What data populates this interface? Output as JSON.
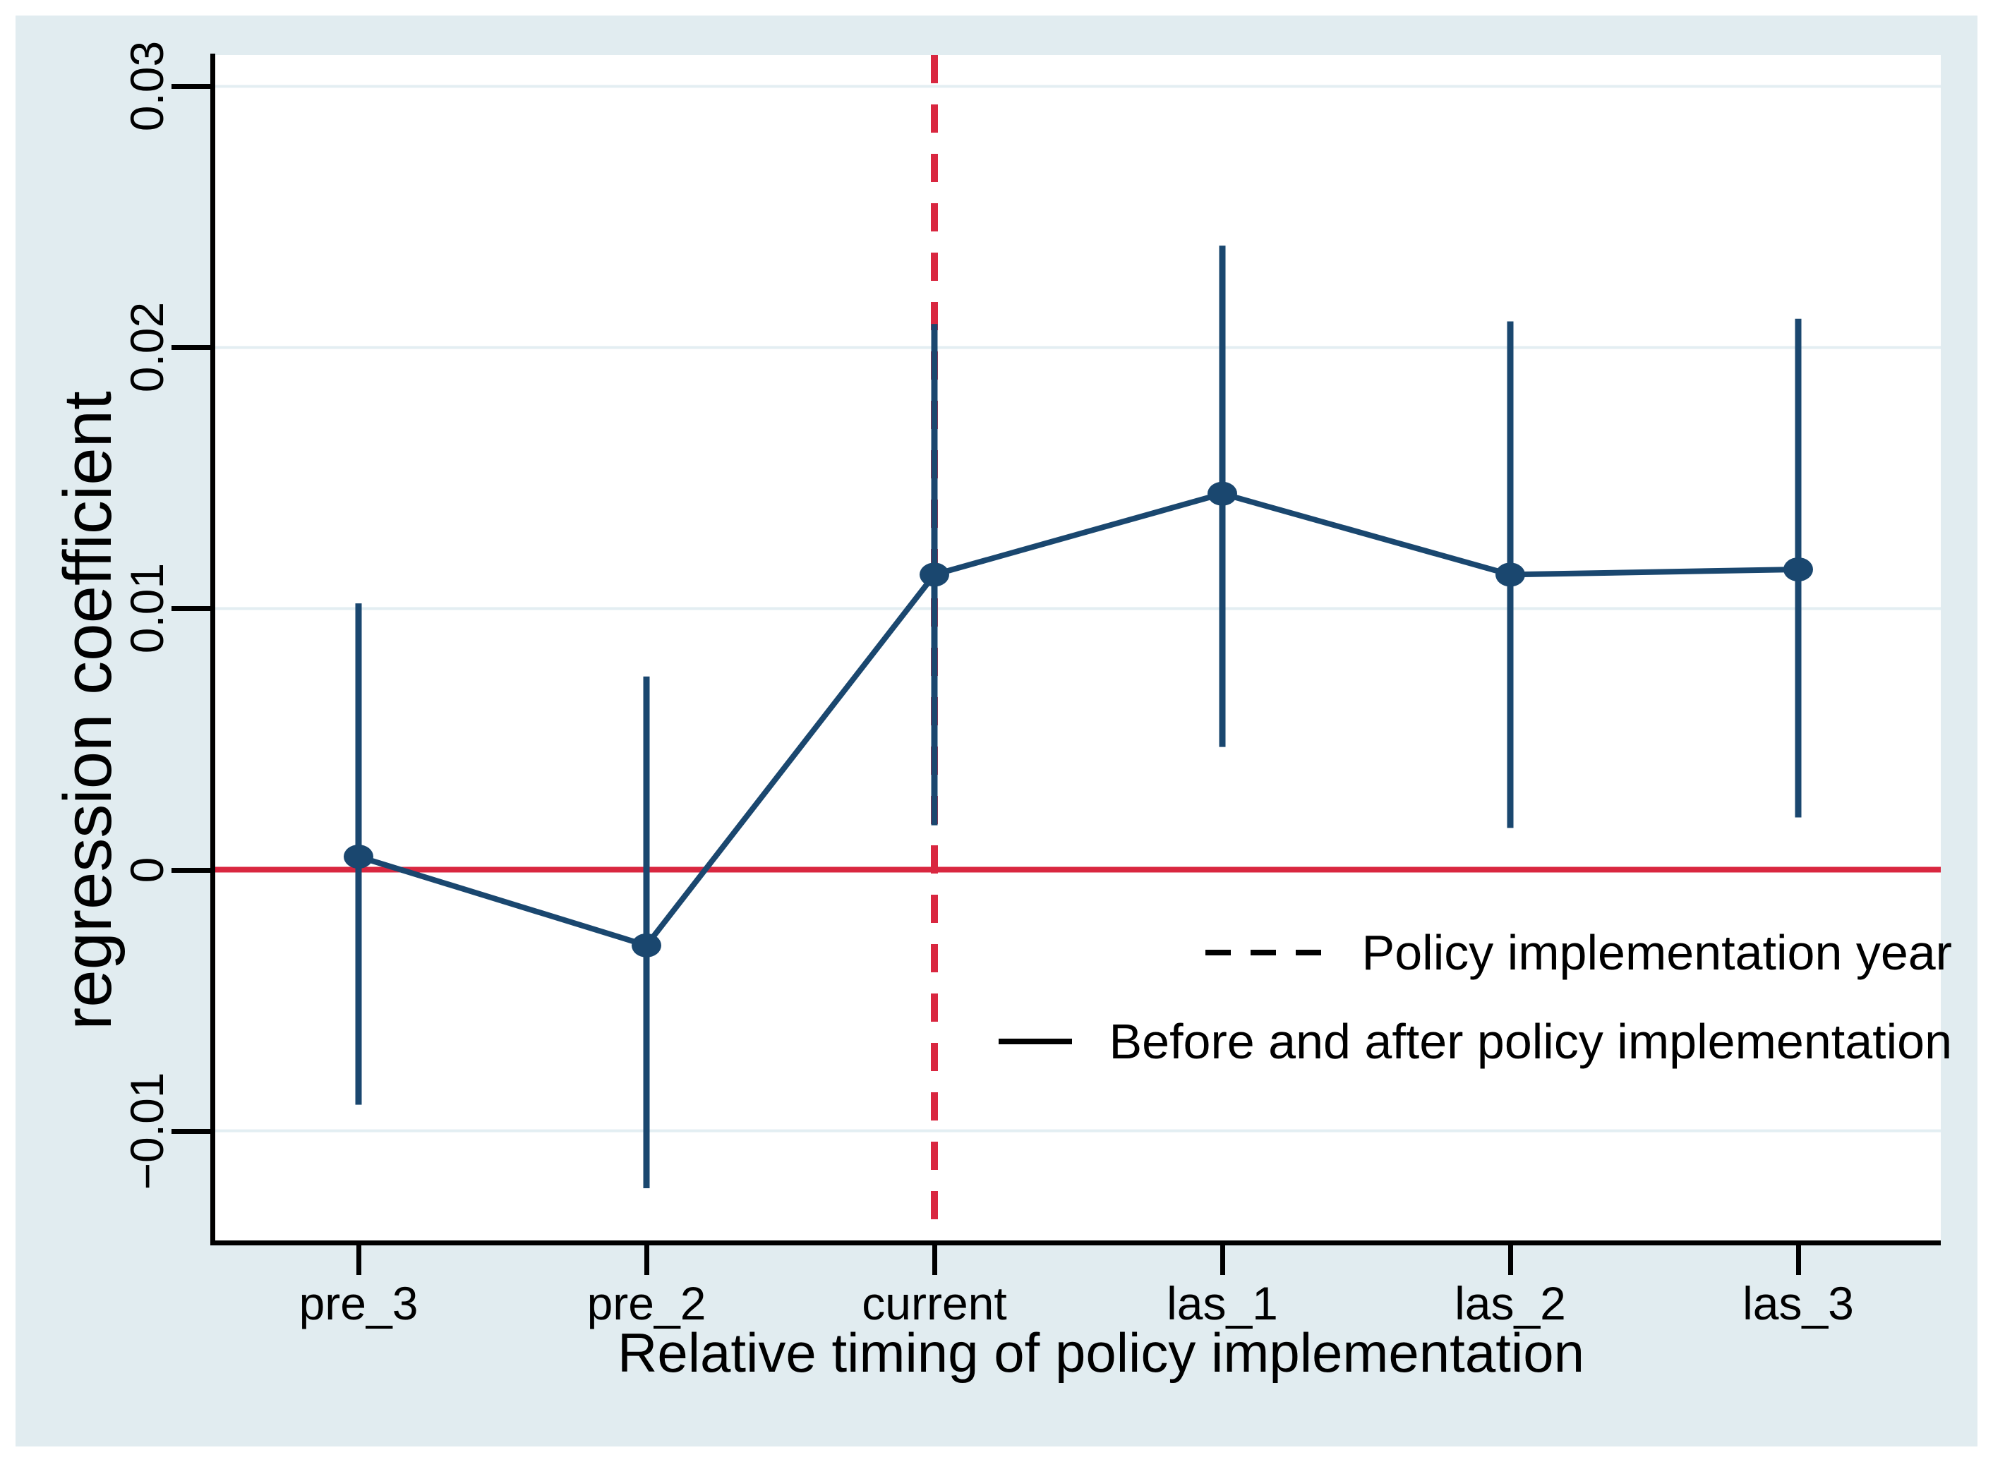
{
  "figure": {
    "background_color": "#e1ecf0",
    "plot_background": "#ffffff",
    "gridline_color": "#e3eef2",
    "navy": "#1a476f",
    "red": "#d92740",
    "axis_color": "#000000"
  },
  "chart_data": {
    "type": "line",
    "title": "",
    "xlabel": "Relative timing of policy implementation",
    "ylabel": "regression coefficient",
    "categories": [
      "pre_3",
      "pre_2",
      "current",
      "las_1",
      "las_2",
      "las_3"
    ],
    "series": [
      {
        "name": "Before and after policy implementation",
        "values": [
          0.0005,
          -0.0029,
          0.0113,
          0.0144,
          0.0113,
          0.0115
        ],
        "ci_low": [
          -0.009,
          -0.0122,
          0.0017,
          0.0047,
          0.0016,
          0.002
        ],
        "ci_high": [
          0.0102,
          0.0074,
          0.0209,
          0.0239,
          0.021,
          0.0211
        ]
      }
    ],
    "y_ticks": [
      "0.03",
      "0.02",
      "0.01",
      "0",
      "−0.01"
    ],
    "y_tick_values": [
      0.03,
      0.02,
      0.01,
      0,
      -0.01
    ],
    "ylim": [
      -0.0142,
      0.0312
    ],
    "grid": true,
    "reference_lines": {
      "horizontal_y": 0,
      "vertical_x_category": "current"
    },
    "legend_position": "inside-right-middle",
    "legend": [
      {
        "symbol": "dashed-line",
        "label": "Policy implementation year"
      },
      {
        "symbol": "solid-line",
        "label": "Before and after policy implementation"
      }
    ]
  }
}
